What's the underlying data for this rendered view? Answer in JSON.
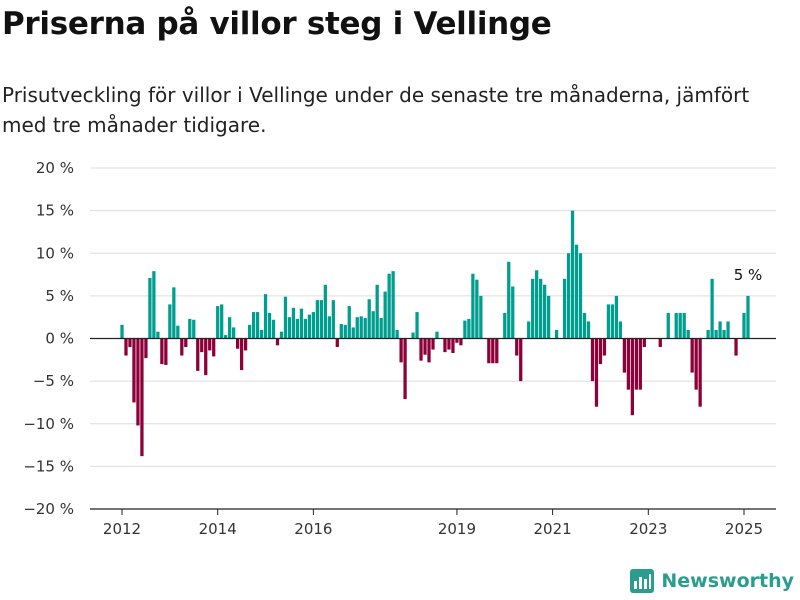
{
  "title": "Priserna på villor steg i Vellinge",
  "subtitle": "Prisutveckling för villor i Vellinge under de senaste tre månaderna, jämfört med tre månader tidigare.",
  "brand": "Newsworthy",
  "colors": {
    "positive": "#009e8f",
    "negative": "#8e0039",
    "grid": "#dddddd",
    "axis": "#222222",
    "brand": "#2a9d8f"
  },
  "chart_data": {
    "type": "bar",
    "title": "Priserna på villor steg i Vellinge",
    "subtitle": "Prisutveckling för villor i Vellinge under de senaste tre månaderna, jämfört med tre månader tidigare.",
    "xlabel": "",
    "ylabel": "",
    "ylim": [
      -20,
      20
    ],
    "yticks": [
      20,
      15,
      10,
      5,
      0,
      -5,
      -10,
      -15,
      -20
    ],
    "ytick_labels": [
      "20 %",
      "15 %",
      "10 %",
      "5 %",
      "0 %",
      "−5 %",
      "−10 %",
      "−15 %",
      "−20 %"
    ],
    "xticks": [
      {
        "label": "2012",
        "value": "2012-01"
      },
      {
        "label": "2014",
        "value": "2014-01"
      },
      {
        "label": "2016",
        "value": "2016-01"
      },
      {
        "label": "2019",
        "value": "2019-01"
      },
      {
        "label": "2021",
        "value": "2021-01"
      },
      {
        "label": "2023",
        "value": "2023-01"
      },
      {
        "label": "2025",
        "value": "2025-01"
      }
    ],
    "x_start": "2012-01",
    "grid": true,
    "end_label": "5 %",
    "series": [
      {
        "values": [
          1.6,
          -2,
          -1,
          -7.5,
          -10.2,
          -13.8,
          -2.3,
          7.1,
          7.9,
          0.8,
          -3,
          -3.1,
          4,
          6,
          1.5,
          -2,
          -1,
          2.3,
          2.2,
          -3.8,
          -1.6,
          -4.3,
          -1.4,
          -2.1,
          3.8,
          4,
          0.4,
          2.5,
          1.3,
          -1.2,
          -3.7,
          -1.4,
          1.6,
          3.1,
          3.1,
          1,
          5.2,
          3,
          2.2,
          -0.8,
          0.8,
          4.9,
          2.5,
          3.6,
          2.3,
          3.5,
          2.3,
          2.8,
          3.1,
          4.5,
          4.5,
          6.3,
          2.6,
          4.5,
          -1,
          1.7,
          1.6,
          3.8,
          1.3,
          2.5,
          2.6,
          2.4,
          4.6,
          3.2,
          6.3,
          2.4,
          5.5,
          7.6,
          7.9,
          1,
          -2.8,
          -7.1,
          null,
          0.7,
          3.1,
          -2.6,
          -1.9,
          -2.8,
          -1.3,
          0.8,
          null,
          -1.6,
          -1.3,
          -1.7,
          -0.5,
          -0.8,
          2.1,
          2.3,
          7.6,
          6.9,
          5,
          null,
          -2.9,
          -2.9,
          -2.9,
          null,
          3,
          9,
          6.1,
          -2,
          -5,
          null,
          2,
          7,
          8,
          7,
          6.3,
          5,
          null,
          1,
          null,
          7,
          10,
          15,
          11,
          10,
          3,
          2,
          -5,
          -8,
          -3,
          -2,
          4,
          4,
          5,
          2,
          -4,
          -6,
          -9,
          -6,
          -6,
          -1,
          null,
          null,
          null,
          -1,
          null,
          3,
          null,
          3,
          3,
          3,
          1,
          -4,
          -6,
          -8,
          null,
          1,
          7,
          1,
          2,
          1,
          2,
          null,
          -2,
          null,
          3,
          5
        ]
      }
    ]
  }
}
